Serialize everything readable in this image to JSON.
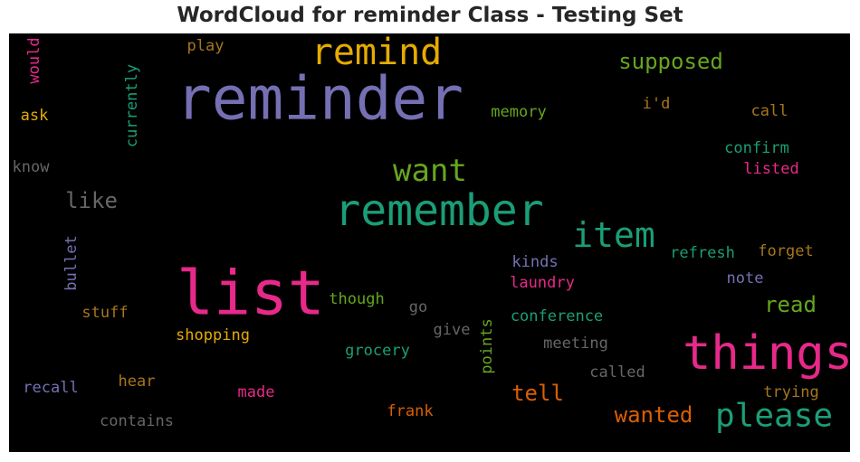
{
  "chart_data": {
    "type": "wordcloud",
    "title": "WordCloud for reminder Class - Testing Set",
    "background": "#000000",
    "palette": {
      "purple": "#7570b3",
      "green": "#1b9e77",
      "pink": "#e7298a",
      "olive": "#66a61e",
      "gold": "#e6ab02",
      "orange": "#d95f02",
      "brown": "#a6761d",
      "gray": "#666666"
    },
    "words": [
      {
        "text": "reminder",
        "color": "#7570b3",
        "rotated": false
      },
      {
        "text": "list",
        "color": "#e7298a",
        "rotated": false
      },
      {
        "text": "remember",
        "color": "#1b9e77",
        "rotated": false
      },
      {
        "text": "things",
        "color": "#e7298a",
        "rotated": false
      },
      {
        "text": "remind",
        "color": "#e6ab02",
        "rotated": false
      },
      {
        "text": "please",
        "color": "#1b9e77",
        "rotated": false
      },
      {
        "text": "item",
        "color": "#1b9e77",
        "rotated": false
      },
      {
        "text": "want",
        "color": "#66a61e",
        "rotated": false
      },
      {
        "text": "supposed",
        "color": "#66a61e",
        "rotated": false
      },
      {
        "text": "like",
        "color": "#666666",
        "rotated": false
      },
      {
        "text": "wanted",
        "color": "#d95f02",
        "rotated": false
      },
      {
        "text": "tell",
        "color": "#d95f02",
        "rotated": false
      },
      {
        "text": "read",
        "color": "#66a61e",
        "rotated": false
      },
      {
        "text": "play",
        "color": "#a6761d",
        "rotated": false
      },
      {
        "text": "would",
        "color": "#e7298a",
        "rotated": true
      },
      {
        "text": "ask",
        "color": "#e6ab02",
        "rotated": false
      },
      {
        "text": "currently",
        "color": "#1b9e77",
        "rotated": true
      },
      {
        "text": "memory",
        "color": "#66a61e",
        "rotated": false
      },
      {
        "text": "i'd",
        "color": "#a6761d",
        "rotated": false
      },
      {
        "text": "call",
        "color": "#a6761d",
        "rotated": false
      },
      {
        "text": "know",
        "color": "#666666",
        "rotated": false
      },
      {
        "text": "confirm",
        "color": "#1b9e77",
        "rotated": false
      },
      {
        "text": "listed",
        "color": "#e7298a",
        "rotated": false
      },
      {
        "text": "bullet",
        "color": "#7570b3",
        "rotated": true
      },
      {
        "text": "refresh",
        "color": "#1b9e77",
        "rotated": false
      },
      {
        "text": "forget",
        "color": "#a6761d",
        "rotated": false
      },
      {
        "text": "kinds",
        "color": "#7570b3",
        "rotated": false
      },
      {
        "text": "note",
        "color": "#7570b3",
        "rotated": false
      },
      {
        "text": "laundry",
        "color": "#e7298a",
        "rotated": false
      },
      {
        "text": "though",
        "color": "#66a61e",
        "rotated": false
      },
      {
        "text": "go",
        "color": "#666666",
        "rotated": false
      },
      {
        "text": "stuff",
        "color": "#a6761d",
        "rotated": false
      },
      {
        "text": "conference",
        "color": "#1b9e77",
        "rotated": false
      },
      {
        "text": "give",
        "color": "#666666",
        "rotated": false
      },
      {
        "text": "points",
        "color": "#66a61e",
        "rotated": true
      },
      {
        "text": "shopping",
        "color": "#e6ab02",
        "rotated": false
      },
      {
        "text": "meeting",
        "color": "#666666",
        "rotated": false
      },
      {
        "text": "grocery",
        "color": "#1b9e77",
        "rotated": false
      },
      {
        "text": "called",
        "color": "#666666",
        "rotated": false
      },
      {
        "text": "recall",
        "color": "#7570b3",
        "rotated": false
      },
      {
        "text": "hear",
        "color": "#a6761d",
        "rotated": false
      },
      {
        "text": "made",
        "color": "#e7298a",
        "rotated": false
      },
      {
        "text": "trying",
        "color": "#a6761d",
        "rotated": false
      },
      {
        "text": "frank",
        "color": "#d95f02",
        "rotated": false
      },
      {
        "text": "contains",
        "color": "#666666",
        "rotated": false
      }
    ]
  }
}
